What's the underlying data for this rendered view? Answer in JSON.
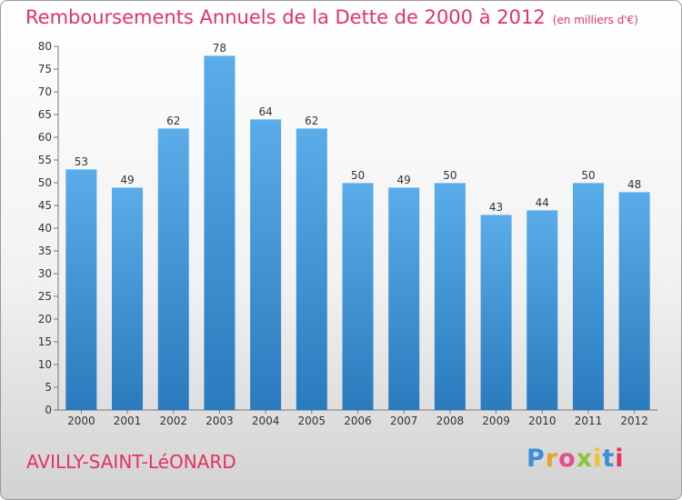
{
  "title": "Remboursements Annuels de la Dette de 2000 à 2012",
  "title_unit": "(en milliers d'€)",
  "commune": "AVILLY-SAINT-LéONARD",
  "logo": {
    "letters": [
      "P",
      "r",
      "o",
      "x",
      "i",
      "t",
      "i"
    ],
    "colors": [
      "#3a8fd8",
      "#e5a52a",
      "#e64b8f",
      "#8cc43c",
      "#f2c12e",
      "#3a8fd8",
      "#e5325e"
    ]
  },
  "chart_data": {
    "type": "bar",
    "title": "Remboursements Annuels de la Dette de 2000 à 2012",
    "categories": [
      "2000",
      "2001",
      "2002",
      "2003",
      "2004",
      "2005",
      "2006",
      "2007",
      "2008",
      "2009",
      "2010",
      "2011",
      "2012"
    ],
    "values": [
      53,
      49,
      62,
      78,
      64,
      62,
      50,
      49,
      50,
      43,
      44,
      50,
      48
    ],
    "ylim": [
      0,
      80
    ],
    "yticks": [
      0,
      5,
      10,
      15,
      20,
      25,
      30,
      35,
      40,
      45,
      50,
      55,
      60,
      65,
      70,
      75,
      80
    ],
    "grid": false,
    "bar_color_top": "#5aacea",
    "bar_color_bottom": "#2a7bbd"
  }
}
